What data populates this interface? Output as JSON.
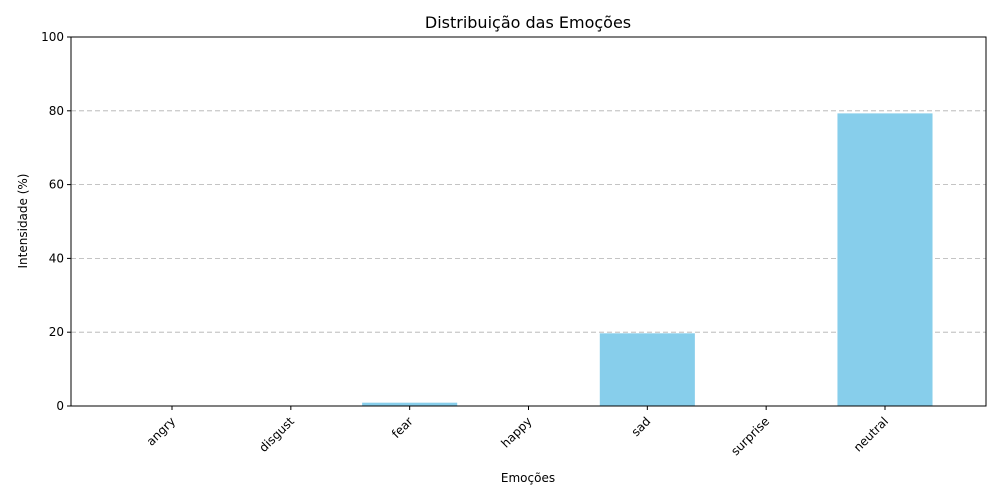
{
  "chart_data": {
    "type": "bar",
    "title": "Distribuição das Emoções",
    "xlabel": "Emoções",
    "ylabel": "Intensidade (%)",
    "categories": [
      "angry",
      "disgust",
      "fear",
      "happy",
      "sad",
      "surprise",
      "neutral"
    ],
    "values": [
      0.0,
      0.0,
      0.9,
      0.0,
      19.7,
      0.0,
      79.3
    ],
    "ylim": [
      0,
      100
    ],
    "yticks": [
      0,
      20,
      40,
      60,
      80,
      100
    ],
    "grid": "y-dashed",
    "bar_color": "#87ceeb",
    "x_tick_rotation": 45
  }
}
